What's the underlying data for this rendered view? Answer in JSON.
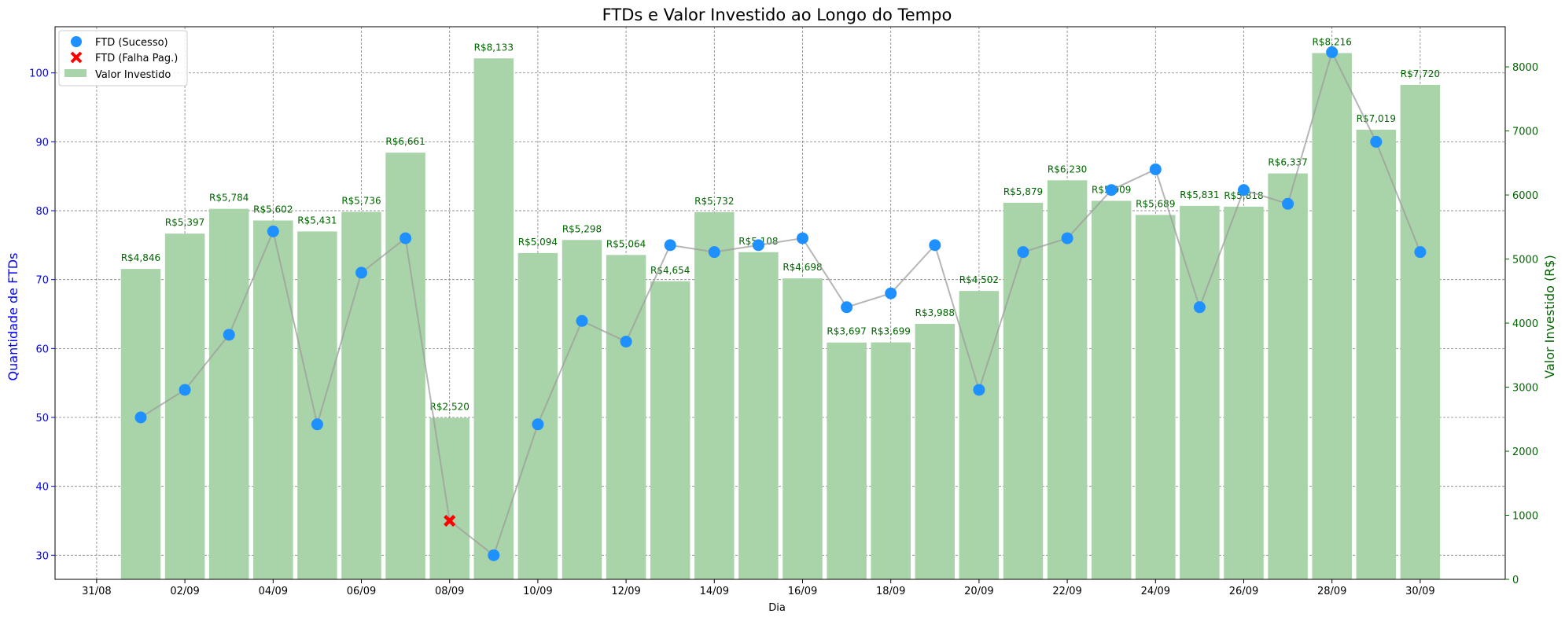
{
  "chart_data": {
    "type": "bar+line",
    "title": "FTDs e Valor Investido ao Longo do Tempo",
    "xlabel": "Dia",
    "ylabel_left": "Quantidade de FTDs",
    "ylabel_right": "Valor Investido (R$)",
    "x_ticks": [
      "31/08",
      "02/09",
      "04/09",
      "06/09",
      "08/09",
      "10/09",
      "12/09",
      "14/09",
      "16/09",
      "18/09",
      "20/09",
      "22/09",
      "24/09",
      "26/09",
      "28/09",
      "30/09"
    ],
    "days": [
      "01/09",
      "02/09",
      "03/09",
      "04/09",
      "05/09",
      "06/09",
      "07/09",
      "08/09",
      "09/09",
      "10/09",
      "11/09",
      "12/09",
      "13/09",
      "14/09",
      "15/09",
      "16/09",
      "17/09",
      "18/09",
      "19/09",
      "20/09",
      "21/09",
      "22/09",
      "23/09",
      "24/09",
      "25/09",
      "26/09",
      "27/09",
      "28/09",
      "29/09",
      "30/09"
    ],
    "ftd": [
      50,
      54,
      62,
      77,
      49,
      71,
      76,
      35,
      30,
      49,
      64,
      61,
      75,
      74,
      75,
      76,
      66,
      68,
      75,
      54,
      74,
      76,
      83,
      86,
      66,
      83,
      81,
      103,
      90,
      74
    ],
    "ftd_status": [
      "ok",
      "ok",
      "ok",
      "ok",
      "ok",
      "ok",
      "ok",
      "fail",
      "ok",
      "ok",
      "ok",
      "ok",
      "ok",
      "ok",
      "ok",
      "ok",
      "ok",
      "ok",
      "ok",
      "ok",
      "ok",
      "ok",
      "ok",
      "ok",
      "ok",
      "ok",
      "ok",
      "ok",
      "ok",
      "ok"
    ],
    "invested": [
      4846,
      5397,
      5784,
      5602,
      5431,
      5736,
      6661,
      2520,
      8133,
      5094,
      5298,
      5064,
      4654,
      5732,
      5108,
      4698,
      3697,
      3699,
      3988,
      4502,
      5879,
      6230,
      5909,
      5689,
      5831,
      5818,
      6337,
      8216,
      7019,
      7720
    ],
    "invested_labels": [
      "R$4,846",
      "R$5,397",
      "R$5,784",
      "R$5,602",
      "R$5,431",
      "R$5,736",
      "R$6,661",
      "R$2,520",
      "R$8,133",
      "R$5,094",
      "R$5,298",
      "R$5,064",
      "R$4,654",
      "R$5,732",
      "R$5,108",
      "R$4,698",
      "R$3,697",
      "R$3,699",
      "R$3,988",
      "R$4,502",
      "R$5,879",
      "R$6,230",
      "R$5,909",
      "R$5,689",
      "R$5,831",
      "R$5,818",
      "R$6,337",
      "R$8,216",
      "R$7,019",
      "R$7,720"
    ],
    "ylim_left": [
      26.5,
      106.7
    ],
    "yticks_left": [
      30,
      40,
      50,
      60,
      70,
      80,
      90,
      100
    ],
    "ylim_right": [
      0,
      8627
    ],
    "yticks_right": [
      0,
      1000,
      2000,
      3000,
      4000,
      5000,
      6000,
      7000,
      8000
    ],
    "grid": true,
    "legend_position": "top-left",
    "legend": [
      {
        "label": "FTD (Sucesso)",
        "marker": "circle",
        "color": "#1e90ff"
      },
      {
        "label": "FTD (Falha Pag.)",
        "marker": "x",
        "color": "#ff0000"
      },
      {
        "label": "Valor Investido",
        "marker": "rect",
        "color": "#a9d3a8"
      }
    ],
    "colors": {
      "bar": "#a9d3a8",
      "bar_label": "#006400",
      "line": "#b3b3b3",
      "success": "#1e90ff",
      "failure": "#ff0000",
      "left_axis": "#0000ff",
      "right_axis": "#006400"
    }
  }
}
